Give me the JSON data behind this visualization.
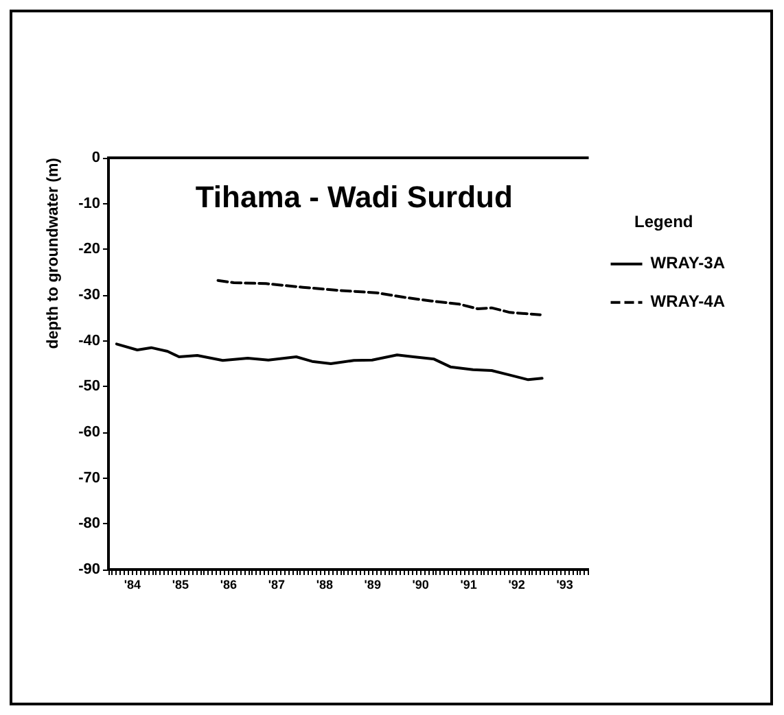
{
  "chart_data": {
    "type": "line",
    "title": "Tihama - Wadi Surdud",
    "ylabel": "depth to groundwater (m)",
    "legend_title": "Legend",
    "legend": "right",
    "grid": false,
    "xlim": [
      1983.5,
      1993.5
    ],
    "xticks": [
      {
        "value": 1983.5,
        "label": null
      },
      {
        "value": 1983.583,
        "label": null
      },
      {
        "value": 1983.667,
        "label": null
      },
      {
        "value": 1983.75,
        "label": null
      },
      {
        "value": 1983.833,
        "label": null
      },
      {
        "value": 1983.917,
        "label": null
      },
      {
        "value": 1984,
        "label": "'84"
      },
      {
        "value": 1984.083,
        "label": null
      },
      {
        "value": 1984.167,
        "label": null
      },
      {
        "value": 1984.25,
        "label": null
      },
      {
        "value": 1984.333,
        "label": null
      },
      {
        "value": 1984.417,
        "label": null
      },
      {
        "value": 1984.5,
        "label": null
      },
      {
        "value": 1984.583,
        "label": null
      },
      {
        "value": 1984.667,
        "label": null
      },
      {
        "value": 1984.75,
        "label": null
      },
      {
        "value": 1984.833,
        "label": null
      },
      {
        "value": 1984.917,
        "label": null
      },
      {
        "value": 1985,
        "label": "'85"
      },
      {
        "value": 1985.083,
        "label": null
      },
      {
        "value": 1985.167,
        "label": null
      },
      {
        "value": 1985.25,
        "label": null
      },
      {
        "value": 1985.333,
        "label": null
      },
      {
        "value": 1985.417,
        "label": null
      },
      {
        "value": 1985.5,
        "label": null
      },
      {
        "value": 1985.583,
        "label": null
      },
      {
        "value": 1985.667,
        "label": null
      },
      {
        "value": 1985.75,
        "label": null
      },
      {
        "value": 1985.833,
        "label": null
      },
      {
        "value": 1985.917,
        "label": null
      },
      {
        "value": 1986,
        "label": "'86"
      },
      {
        "value": 1986.083,
        "label": null
      },
      {
        "value": 1986.167,
        "label": null
      },
      {
        "value": 1986.25,
        "label": null
      },
      {
        "value": 1986.333,
        "label": null
      },
      {
        "value": 1986.417,
        "label": null
      },
      {
        "value": 1986.5,
        "label": null
      },
      {
        "value": 1986.583,
        "label": null
      },
      {
        "value": 1986.667,
        "label": null
      },
      {
        "value": 1986.75,
        "label": null
      },
      {
        "value": 1986.833,
        "label": null
      },
      {
        "value": 1986.917,
        "label": null
      },
      {
        "value": 1987,
        "label": "'87"
      },
      {
        "value": 1987.083,
        "label": null
      },
      {
        "value": 1987.167,
        "label": null
      },
      {
        "value": 1987.25,
        "label": null
      },
      {
        "value": 1987.333,
        "label": null
      },
      {
        "value": 1987.417,
        "label": null
      },
      {
        "value": 1987.5,
        "label": null
      },
      {
        "value": 1987.583,
        "label": null
      },
      {
        "value": 1987.667,
        "label": null
      },
      {
        "value": 1987.75,
        "label": null
      },
      {
        "value": 1987.833,
        "label": null
      },
      {
        "value": 1987.917,
        "label": null
      },
      {
        "value": 1988,
        "label": "'88"
      },
      {
        "value": 1988.083,
        "label": null
      },
      {
        "value": 1988.167,
        "label": null
      },
      {
        "value": 1988.25,
        "label": null
      },
      {
        "value": 1988.333,
        "label": null
      },
      {
        "value": 1988.417,
        "label": null
      },
      {
        "value": 1988.5,
        "label": null
      },
      {
        "value": 1988.583,
        "label": null
      },
      {
        "value": 1988.667,
        "label": null
      },
      {
        "value": 1988.75,
        "label": null
      },
      {
        "value": 1988.833,
        "label": null
      },
      {
        "value": 1988.917,
        "label": null
      },
      {
        "value": 1989,
        "label": "'89"
      },
      {
        "value": 1989.083,
        "label": null
      },
      {
        "value": 1989.167,
        "label": null
      },
      {
        "value": 1989.25,
        "label": null
      },
      {
        "value": 1989.333,
        "label": null
      },
      {
        "value": 1989.417,
        "label": null
      },
      {
        "value": 1989.5,
        "label": null
      },
      {
        "value": 1989.583,
        "label": null
      },
      {
        "value": 1989.667,
        "label": null
      },
      {
        "value": 1989.75,
        "label": null
      },
      {
        "value": 1989.833,
        "label": null
      },
      {
        "value": 1989.917,
        "label": null
      },
      {
        "value": 1990,
        "label": "'90"
      },
      {
        "value": 1990.083,
        "label": null
      },
      {
        "value": 1990.167,
        "label": null
      },
      {
        "value": 1990.25,
        "label": null
      },
      {
        "value": 1990.333,
        "label": null
      },
      {
        "value": 1990.417,
        "label": null
      },
      {
        "value": 1990.5,
        "label": null
      },
      {
        "value": 1990.583,
        "label": null
      },
      {
        "value": 1990.667,
        "label": null
      },
      {
        "value": 1990.75,
        "label": null
      },
      {
        "value": 1990.833,
        "label": null
      },
      {
        "value": 1990.917,
        "label": null
      },
      {
        "value": 1991,
        "label": "'91"
      },
      {
        "value": 1991.083,
        "label": null
      },
      {
        "value": 1991.167,
        "label": null
      },
      {
        "value": 1991.25,
        "label": null
      },
      {
        "value": 1991.333,
        "label": null
      },
      {
        "value": 1991.417,
        "label": null
      },
      {
        "value": 1991.5,
        "label": null
      },
      {
        "value": 1991.583,
        "label": null
      },
      {
        "value": 1991.667,
        "label": null
      },
      {
        "value": 1991.75,
        "label": null
      },
      {
        "value": 1991.833,
        "label": null
      },
      {
        "value": 1991.917,
        "label": null
      },
      {
        "value": 1992,
        "label": "'92"
      },
      {
        "value": 1992.083,
        "label": null
      },
      {
        "value": 1992.167,
        "label": null
      },
      {
        "value": 1992.25,
        "label": null
      },
      {
        "value": 1992.333,
        "label": null
      },
      {
        "value": 1992.417,
        "label": null
      },
      {
        "value": 1992.5,
        "label": null
      },
      {
        "value": 1992.583,
        "label": null
      },
      {
        "value": 1992.667,
        "label": null
      },
      {
        "value": 1992.75,
        "label": null
      },
      {
        "value": 1992.833,
        "label": null
      },
      {
        "value": 1992.917,
        "label": null
      },
      {
        "value": 1993,
        "label": "'93"
      },
      {
        "value": 1993.083,
        "label": null
      },
      {
        "value": 1993.167,
        "label": null
      },
      {
        "value": 1993.25,
        "label": null
      },
      {
        "value": 1993.333,
        "label": null
      },
      {
        "value": 1993.417,
        "label": null
      },
      {
        "value": 1993.5,
        "label": null
      }
    ],
    "ylim": [
      -90,
      0
    ],
    "yticks": [
      0,
      -10,
      -20,
      -30,
      -40,
      -50,
      -60,
      -70,
      -80,
      -90
    ],
    "ref_lines": [
      {
        "axis": "y",
        "value": 0,
        "color": "#000000"
      }
    ],
    "series": [
      {
        "name": "WRAY-3A",
        "color": "#000000",
        "line_style": "solid",
        "x": [
          1983.67,
          1984.1,
          1984.39,
          1984.73,
          1984.97,
          1985.35,
          1985.88,
          1986.4,
          1986.83,
          1987.41,
          1987.74,
          1988.13,
          1988.61,
          1988.99,
          1989.51,
          1989.85,
          1990.28,
          1990.62,
          1991.09,
          1991.48,
          1991.86,
          1992.24,
          1992.53
        ],
        "values": [
          -40.7,
          -42,
          -41.5,
          -42.3,
          -43.5,
          -43.2,
          -44.3,
          -43.8,
          -44.2,
          -43.5,
          -44.5,
          -45,
          -44.3,
          -44.2,
          -43.1,
          -43.5,
          -44,
          -45.7,
          -46.3,
          -46.5,
          -47.5,
          -48.5,
          -48.2
        ]
      },
      {
        "name": "WRAY-4A",
        "color": "#000000",
        "line_style": "dashed",
        "x": [
          1985.78,
          1986.11,
          1986.78,
          1987.55,
          1988.32,
          1989.08,
          1989.66,
          1990.23,
          1990.81,
          1991.19,
          1991.48,
          1991.86,
          1992.49
        ],
        "values": [
          -26.8,
          -27.3,
          -27.5,
          -28.3,
          -29,
          -29.5,
          -30.5,
          -31.3,
          -32,
          -33,
          -32.8,
          -33.8,
          -34.3
        ]
      }
    ]
  }
}
